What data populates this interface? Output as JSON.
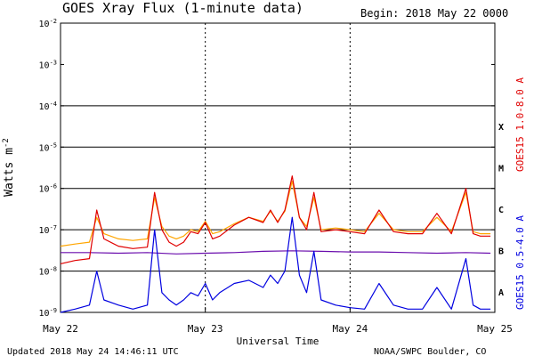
{
  "chart_data": {
    "type": "line",
    "title": "GOES Xray Flux (1-minute data)",
    "begin_label": "Begin:  2018 May 22 0000",
    "ylabel": "Watts m",
    "ylabel_superscript": "-2",
    "xlabel": "Universal Time",
    "y_scale": "log",
    "ylim": [
      1e-09,
      0.01
    ],
    "y_ticks": [
      {
        "base": "10",
        "exp": "-2",
        "value": 0.01
      },
      {
        "base": "10",
        "exp": "-3",
        "value": 0.001
      },
      {
        "base": "10",
        "exp": "-4",
        "value": 0.0001
      },
      {
        "base": "10",
        "exp": "-5",
        "value": 1e-05
      },
      {
        "base": "10",
        "exp": "-6",
        "value": 1e-06
      },
      {
        "base": "10",
        "exp": "-7",
        "value": 1e-07
      },
      {
        "base": "10",
        "exp": "-8",
        "value": 1e-08
      },
      {
        "base": "10",
        "exp": "-9",
        "value": 1e-09
      }
    ],
    "x_unit": "days since 2018 May 22 00:00 UT",
    "xlim": [
      0,
      3
    ],
    "x_ticks": [
      {
        "label": "May 22",
        "value": 0
      },
      {
        "label": "May 23",
        "value": 1
      },
      {
        "label": "May 24",
        "value": 2
      },
      {
        "label": "May 25",
        "value": 3
      }
    ],
    "flare_classes": [
      {
        "label": "X",
        "value": 0.0001
      },
      {
        "label": "M",
        "value": 1e-05
      },
      {
        "label": "C",
        "value": 1e-06
      },
      {
        "label": "B",
        "value": 1e-07
      },
      {
        "label": "A",
        "value": 1e-08
      }
    ],
    "legend": [
      {
        "name": "GOES15 1.0-8.0 A",
        "color": "#e00000"
      },
      {
        "name": "GOES15 0.5-4.0 A",
        "color": "#0000e0"
      }
    ],
    "series": [
      {
        "name": "GOES15 1.0-8.0 A",
        "color": "#e00000",
        "x": [
          0,
          0.1,
          0.2,
          0.25,
          0.3,
          0.4,
          0.5,
          0.6,
          0.65,
          0.7,
          0.75,
          0.8,
          0.85,
          0.9,
          0.95,
          1.0,
          1.05,
          1.1,
          1.2,
          1.3,
          1.4,
          1.45,
          1.5,
          1.55,
          1.6,
          1.65,
          1.7,
          1.75,
          1.8,
          1.9,
          2.0,
          2.1,
          2.2,
          2.3,
          2.4,
          2.5,
          2.6,
          2.7,
          2.8,
          2.85,
          2.9,
          2.97
        ],
        "y": [
          1.5e-08,
          1.8e-08,
          2e-08,
          3e-07,
          6e-08,
          4e-08,
          3.5e-08,
          3.8e-08,
          8e-07,
          1e-07,
          5e-08,
          4e-08,
          5e-08,
          9e-08,
          8e-08,
          1.5e-07,
          6e-08,
          7e-08,
          1.3e-07,
          2e-07,
          1.5e-07,
          3e-07,
          1.5e-07,
          3e-07,
          2e-06,
          2e-07,
          1e-07,
          8e-07,
          9e-08,
          1e-07,
          9e-08,
          8e-08,
          3e-07,
          9e-08,
          8e-08,
          8e-08,
          2.5e-07,
          8e-08,
          1e-06,
          8e-08,
          7e-08,
          7e-08
        ]
      },
      {
        "name": "GOES15 1.0-8.0 A (secondary)",
        "color": "#ffa500",
        "x": [
          0,
          0.1,
          0.2,
          0.25,
          0.3,
          0.4,
          0.5,
          0.6,
          0.65,
          0.7,
          0.75,
          0.8,
          0.85,
          0.9,
          0.95,
          1.0,
          1.05,
          1.1,
          1.2,
          1.3,
          1.4,
          1.45,
          1.5,
          1.55,
          1.6,
          1.65,
          1.7,
          1.75,
          1.8,
          1.9,
          2.0,
          2.1,
          2.2,
          2.3,
          2.4,
          2.5,
          2.6,
          2.7,
          2.8,
          2.85,
          2.9,
          2.97
        ],
        "y": [
          4e-08,
          4.5e-08,
          5e-08,
          2e-07,
          8e-08,
          6e-08,
          5.5e-08,
          6e-08,
          6e-07,
          1.2e-07,
          7e-08,
          6e-08,
          7e-08,
          1e-07,
          9e-08,
          1.6e-07,
          8e-08,
          9e-08,
          1.4e-07,
          2e-07,
          1.6e-07,
          2.8e-07,
          1.6e-07,
          2.8e-07,
          1.5e-06,
          2e-07,
          1.2e-07,
          6e-07,
          1e-07,
          1.1e-07,
          1e-07,
          9e-08,
          2.5e-07,
          1e-07,
          9e-08,
          9e-08,
          2e-07,
          9e-08,
          8e-07,
          9e-08,
          8e-08,
          8e-08
        ]
      },
      {
        "name": "GOES15 0.5-4.0 A",
        "color": "#0000e0",
        "x": [
          0,
          0.1,
          0.2,
          0.25,
          0.3,
          0.4,
          0.5,
          0.6,
          0.65,
          0.7,
          0.75,
          0.8,
          0.85,
          0.9,
          0.95,
          1.0,
          1.05,
          1.1,
          1.2,
          1.3,
          1.4,
          1.45,
          1.5,
          1.55,
          1.6,
          1.65,
          1.7,
          1.75,
          1.8,
          1.9,
          2.0,
          2.1,
          2.2,
          2.3,
          2.4,
          2.5,
          2.6,
          2.7,
          2.8,
          2.85,
          2.9,
          2.97
        ],
        "y": [
          1e-09,
          1.2e-09,
          1.5e-09,
          1e-08,
          2e-09,
          1.5e-09,
          1.2e-09,
          1.5e-09,
          1e-07,
          3e-09,
          2e-09,
          1.5e-09,
          2e-09,
          3e-09,
          2.5e-09,
          5e-09,
          2e-09,
          3e-09,
          5e-09,
          6e-09,
          4e-09,
          8e-09,
          5e-09,
          1e-08,
          2e-07,
          8e-09,
          3e-09,
          3e-08,
          2e-09,
          1.5e-09,
          1.3e-09,
          1.2e-09,
          5e-09,
          1.5e-09,
          1.2e-09,
          1.2e-09,
          4e-09,
          1.2e-09,
          2e-08,
          1.5e-09,
          1.2e-09,
          1.2e-09
        ]
      },
      {
        "name": "Background (purple)",
        "color": "#6a0dad",
        "x": [
          0,
          0.2,
          0.4,
          0.6,
          0.8,
          1.0,
          1.2,
          1.4,
          1.6,
          1.8,
          2.0,
          2.2,
          2.4,
          2.6,
          2.8,
          2.97
        ],
        "y": [
          2.8e-08,
          2.8e-08,
          2.7e-08,
          2.8e-08,
          2.6e-08,
          2.7e-08,
          2.8e-08,
          3e-08,
          3.1e-08,
          3e-08,
          2.9e-08,
          2.9e-08,
          2.8e-08,
          2.7e-08,
          2.8e-08,
          2.7e-08
        ]
      }
    ],
    "footer_left": "Updated 2018 May 24 14:46:11 UTC",
    "footer_right": "NOAA/SWPC Boulder, CO"
  }
}
